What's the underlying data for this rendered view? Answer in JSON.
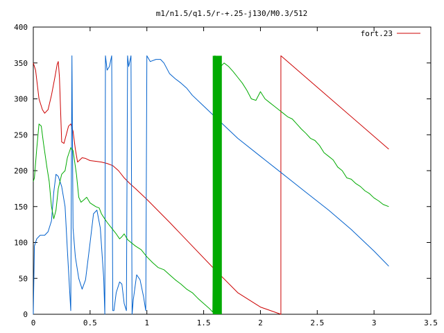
{
  "chart_data": {
    "type": "line",
    "title": "m1/n1.5/q1.5/r-+.25-j130/M0.3/512",
    "xlabel": "",
    "ylabel": "",
    "xlim": [
      0,
      3.5
    ],
    "ylim": [
      0,
      400
    ],
    "x_ticks": [
      "0",
      "0.5",
      "1",
      "1.5",
      "2",
      "2.5",
      "3",
      "3.5"
    ],
    "y_ticks": [
      "0",
      "50",
      "100",
      "150",
      "200",
      "250",
      "300",
      "350",
      "400"
    ],
    "legend": {
      "position": "top-right",
      "label": "fort.23",
      "color": "#cc0000"
    },
    "grid": false,
    "series": [
      {
        "color": "#cc0000",
        "points": [
          [
            0.0,
            350
          ],
          [
            0.02,
            340
          ],
          [
            0.05,
            300
          ],
          [
            0.08,
            285
          ],
          [
            0.1,
            280
          ],
          [
            0.13,
            285
          ],
          [
            0.16,
            305
          ],
          [
            0.19,
            330
          ],
          [
            0.21,
            348
          ],
          [
            0.22,
            352
          ],
          [
            0.23,
            330
          ],
          [
            0.25,
            240
          ],
          [
            0.27,
            238
          ],
          [
            0.29,
            250
          ],
          [
            0.31,
            262
          ],
          [
            0.33,
            265
          ],
          [
            0.35,
            255
          ],
          [
            0.37,
            230
          ],
          [
            0.39,
            212
          ],
          [
            0.41,
            215
          ],
          [
            0.43,
            218
          ],
          [
            0.46,
            217
          ],
          [
            0.5,
            214
          ],
          [
            0.55,
            213
          ],
          [
            0.6,
            212
          ],
          [
            0.65,
            210
          ],
          [
            0.7,
            207
          ],
          [
            0.75,
            200
          ],
          [
            0.8,
            190
          ],
          [
            0.85,
            182
          ],
          [
            0.9,
            175
          ],
          [
            1.0,
            160
          ],
          [
            1.2,
            128
          ],
          [
            1.4,
            95
          ],
          [
            1.6,
            62
          ],
          [
            1.8,
            30
          ],
          [
            2.0,
            10
          ],
          [
            2.18,
            0
          ],
          [
            2.18,
            360
          ],
          [
            3.13,
            230
          ]
        ]
      },
      {
        "color": "#0060cc",
        "points": [
          [
            0.0,
            0
          ],
          [
            0.01,
            95
          ],
          [
            0.03,
            105
          ],
          [
            0.06,
            110
          ],
          [
            0.1,
            110
          ],
          [
            0.13,
            115
          ],
          [
            0.16,
            130
          ],
          [
            0.18,
            170
          ],
          [
            0.2,
            195
          ],
          [
            0.22,
            192
          ],
          [
            0.25,
            178
          ],
          [
            0.28,
            150
          ],
          [
            0.3,
            90
          ],
          [
            0.33,
            5
          ],
          [
            0.34,
            360
          ],
          [
            0.35,
            120
          ],
          [
            0.37,
            80
          ],
          [
            0.4,
            50
          ],
          [
            0.43,
            35
          ],
          [
            0.46,
            48
          ],
          [
            0.5,
            100
          ],
          [
            0.53,
            140
          ],
          [
            0.56,
            145
          ],
          [
            0.59,
            120
          ],
          [
            0.62,
            50
          ],
          [
            0.63,
            0
          ],
          [
            0.635,
            360
          ],
          [
            0.65,
            340
          ],
          [
            0.67,
            345
          ],
          [
            0.69,
            360
          ],
          [
            0.7,
            5
          ],
          [
            0.71,
            5
          ],
          [
            0.73,
            30
          ],
          [
            0.76,
            45
          ],
          [
            0.78,
            42
          ],
          [
            0.8,
            15
          ],
          [
            0.82,
            5
          ],
          [
            0.83,
            360
          ],
          [
            0.84,
            345
          ],
          [
            0.86,
            360
          ],
          [
            0.87,
            0
          ],
          [
            0.88,
            20
          ],
          [
            0.91,
            55
          ],
          [
            0.94,
            48
          ],
          [
            0.97,
            25
          ],
          [
            0.99,
            5
          ],
          [
            1.0,
            360
          ],
          [
            1.03,
            352
          ],
          [
            1.08,
            355
          ],
          [
            1.12,
            355
          ],
          [
            1.15,
            350
          ],
          [
            1.2,
            335
          ],
          [
            1.25,
            328
          ],
          [
            1.3,
            322
          ],
          [
            1.35,
            315
          ],
          [
            1.4,
            305
          ],
          [
            1.5,
            290
          ],
          [
            1.6,
            275
          ],
          [
            1.8,
            245
          ],
          [
            2.0,
            220
          ],
          [
            2.2,
            195
          ],
          [
            2.4,
            170
          ],
          [
            2.6,
            145
          ],
          [
            2.8,
            118
          ],
          [
            3.0,
            88
          ],
          [
            3.13,
            67
          ]
        ]
      },
      {
        "color": "#00aa00",
        "points": [
          [
            0.0,
            185
          ],
          [
            0.01,
            190
          ],
          [
            0.03,
            230
          ],
          [
            0.05,
            265
          ],
          [
            0.07,
            262
          ],
          [
            0.09,
            238
          ],
          [
            0.12,
            205
          ],
          [
            0.14,
            185
          ],
          [
            0.16,
            150
          ],
          [
            0.18,
            133
          ],
          [
            0.2,
            145
          ],
          [
            0.22,
            175
          ],
          [
            0.25,
            195
          ],
          [
            0.28,
            200
          ],
          [
            0.3,
            218
          ],
          [
            0.33,
            232
          ],
          [
            0.35,
            228
          ],
          [
            0.38,
            195
          ],
          [
            0.4,
            163
          ],
          [
            0.42,
            156
          ],
          [
            0.45,
            160
          ],
          [
            0.47,
            163
          ],
          [
            0.5,
            155
          ],
          [
            0.55,
            150
          ],
          [
            0.58,
            148
          ],
          [
            0.6,
            140
          ],
          [
            0.62,
            135
          ],
          [
            0.65,
            128
          ],
          [
            0.7,
            118
          ],
          [
            0.73,
            112
          ],
          [
            0.76,
            105
          ],
          [
            0.78,
            108
          ],
          [
            0.8,
            112
          ],
          [
            0.83,
            104
          ],
          [
            0.86,
            100
          ],
          [
            0.9,
            95
          ],
          [
            0.95,
            90
          ],
          [
            1.0,
            80
          ],
          [
            1.05,
            72
          ],
          [
            1.1,
            65
          ],
          [
            1.15,
            62
          ],
          [
            1.2,
            55
          ],
          [
            1.25,
            48
          ],
          [
            1.3,
            42
          ],
          [
            1.35,
            35
          ],
          [
            1.4,
            30
          ],
          [
            1.45,
            22
          ],
          [
            1.5,
            15
          ],
          [
            1.55,
            8
          ],
          [
            1.58,
            3
          ],
          [
            1.6,
            360
          ],
          [
            1.62,
            350
          ],
          [
            1.65,
            345
          ],
          [
            1.68,
            350
          ],
          [
            1.72,
            345
          ],
          [
            1.76,
            338
          ],
          [
            1.8,
            330
          ],
          [
            1.84,
            322
          ],
          [
            1.88,
            312
          ],
          [
            1.92,
            300
          ],
          [
            1.96,
            298
          ],
          [
            2.0,
            310
          ],
          [
            2.04,
            300
          ],
          [
            2.08,
            295
          ],
          [
            2.12,
            290
          ],
          [
            2.16,
            285
          ],
          [
            2.2,
            280
          ],
          [
            2.24,
            275
          ],
          [
            2.28,
            272
          ],
          [
            2.32,
            265
          ],
          [
            2.36,
            258
          ],
          [
            2.4,
            252
          ],
          [
            2.44,
            245
          ],
          [
            2.48,
            242
          ],
          [
            2.52,
            235
          ],
          [
            2.56,
            225
          ],
          [
            2.6,
            220
          ],
          [
            2.64,
            215
          ],
          [
            2.68,
            205
          ],
          [
            2.72,
            200
          ],
          [
            2.76,
            190
          ],
          [
            2.8,
            188
          ],
          [
            2.84,
            182
          ],
          [
            2.88,
            178
          ],
          [
            2.92,
            172
          ],
          [
            2.96,
            168
          ],
          [
            3.0,
            162
          ],
          [
            3.04,
            158
          ],
          [
            3.08,
            153
          ],
          [
            3.13,
            150
          ]
        ]
      }
    ]
  }
}
